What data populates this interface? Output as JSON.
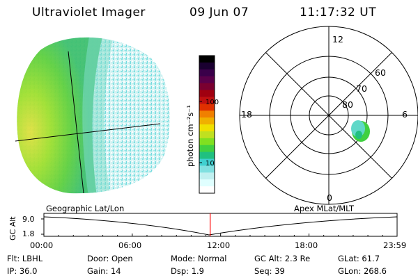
{
  "header": {
    "title": "Ultraviolet Imager",
    "date": "09 Jun 07",
    "time": "11:17:32 UT"
  },
  "colorbar": {
    "label": "photon cm⁻²s⁻¹",
    "ticks": [
      "100",
      "10"
    ],
    "colors": [
      "#000000",
      "#1a0030",
      "#3a004a",
      "#5a004a",
      "#7a0030",
      "#a00010",
      "#c01010",
      "#e03000",
      "#f08000",
      "#f0b000",
      "#f0e000",
      "#c0e020",
      "#80e020",
      "#40d040",
      "#20c080",
      "#40d0d0",
      "#80e0e0",
      "#c0f0f0",
      "#e0ffff",
      "#ffffff"
    ]
  },
  "polar": {
    "mlt_labels": {
      "top": "12",
      "bottom": "0",
      "left": "18",
      "right": "6"
    },
    "lat_labels": [
      "60",
      "70",
      "80"
    ]
  },
  "timeline": {
    "left_label": "Geographic Lat/Lon",
    "right_label": "Apex MLat/MLT",
    "axis_label": "GC Alt",
    "y_ticks": [
      "9.0",
      "1.8"
    ],
    "x_ticks": [
      "00:00",
      "06:00",
      "12:00",
      "18:00",
      "23:59"
    ],
    "marker_hours": 11.29
  },
  "info": {
    "row1": [
      {
        "k": "Flt:",
        "v": "LBHL"
      },
      {
        "k": "Door:",
        "v": "Open"
      },
      {
        "k": "Mode:",
        "v": "Normal"
      },
      {
        "k": "GC Alt:",
        "v": "2.3 Re"
      },
      {
        "k": "GLat:",
        "v": "61.7"
      }
    ],
    "row2": [
      {
        "k": "IP:",
        "v": "36.0"
      },
      {
        "k": "Gain:",
        "v": "14"
      },
      {
        "k": "Dsp:",
        "v": "1.9"
      },
      {
        "k": "Seq:",
        "v": "39"
      },
      {
        "k": "GLon:",
        "v": "268.6"
      }
    ]
  }
}
